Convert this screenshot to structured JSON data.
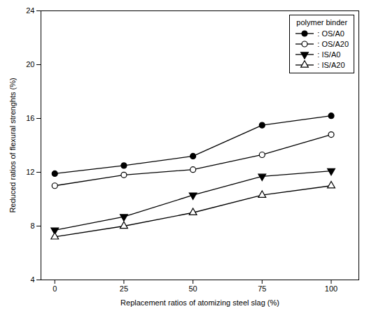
{
  "chart_data": {
    "type": "line",
    "x": [
      0,
      25,
      50,
      75,
      100
    ],
    "series": [
      {
        "name": ": OS/A0",
        "color": "#000000",
        "marker": "filled_circle",
        "values": [
          11.9,
          12.5,
          13.2,
          15.5,
          16.2
        ]
      },
      {
        "name": ": OS/A20",
        "color": "#000000",
        "marker": "open_circle",
        "values": [
          11.0,
          11.8,
          12.2,
          13.3,
          14.8
        ]
      },
      {
        "name": ": IS/A0",
        "color": "#000000",
        "marker": "filled_triangle_down",
        "values": [
          7.7,
          8.7,
          10.3,
          11.7,
          12.1
        ]
      },
      {
        "name": ": IS/A20",
        "color": "#000000",
        "marker": "open_triangle_up",
        "values": [
          7.2,
          8.0,
          9.0,
          10.3,
          11.0
        ]
      }
    ],
    "xlabel": "Replacement ratios of atomizing steel slag (%)",
    "ylabel": "Reduced ratios of flexural strenghts (%)",
    "legend_title": "polymer binder",
    "xlim": [
      -5,
      110
    ],
    "ylim": [
      4,
      24
    ],
    "xticks": [
      0,
      25,
      50,
      75,
      100
    ],
    "yticks": [
      4,
      8,
      12,
      16,
      20,
      24
    ],
    "legend": "upper right",
    "grid": false
  }
}
